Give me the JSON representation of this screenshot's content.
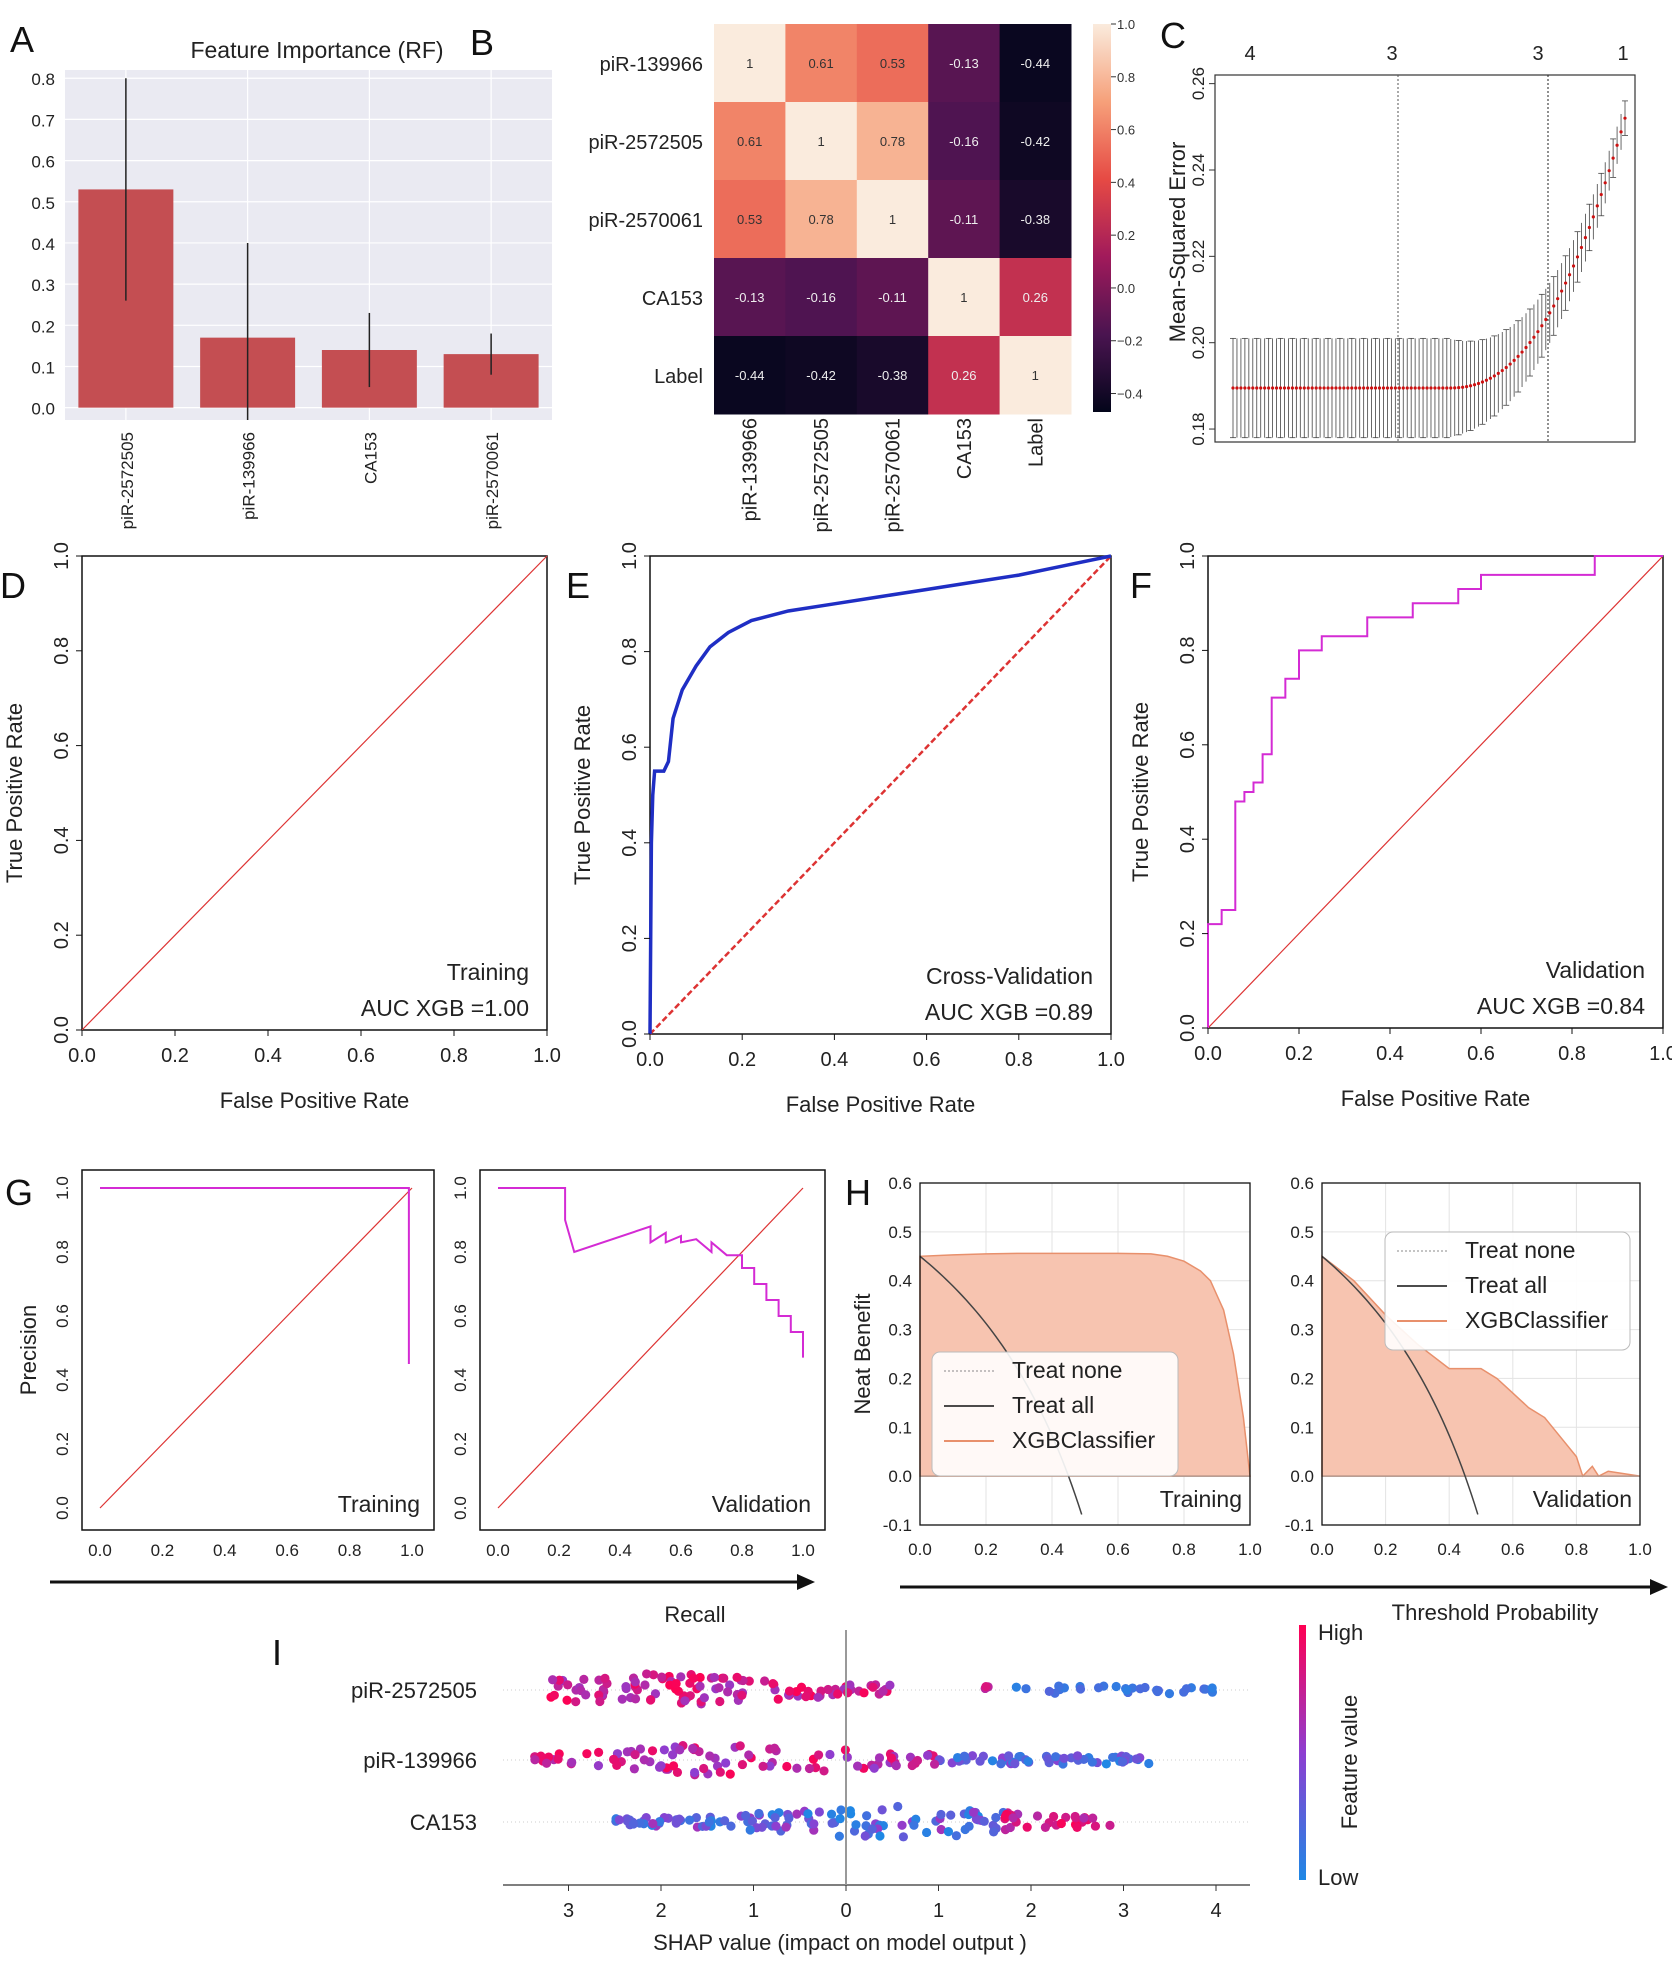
{
  "panel_labels": [
    "A",
    "B",
    "C",
    "D",
    "E",
    "F",
    "G",
    "H",
    "I"
  ],
  "colors": {
    "bar": "#c44e52",
    "diag": "#dd3333",
    "cv_curve": "#1f2ec4",
    "roc_magenta": "#d42bd4",
    "dca_fill": "#f7c4b0",
    "dca_line": "#e8906c",
    "shap_low": "#1e88e5",
    "shap_high": "#ff0052"
  },
  "chart_data": [
    {
      "id": "A",
      "type": "bar",
      "title": "Feature Importance (RF)",
      "categories": [
        "piR-2572505",
        "piR-139966",
        "CA153",
        "piR-2570061"
      ],
      "values": [
        0.53,
        0.17,
        0.14,
        0.13
      ],
      "errors": [
        0.27,
        0.23,
        0.09,
        0.05
      ],
      "ylim": [
        -0.03,
        0.82
      ],
      "yticks": [
        "0.0",
        "0.1",
        "0.2",
        "0.3",
        "0.4",
        "0.5",
        "0.6",
        "0.7",
        "0.8"
      ]
    },
    {
      "id": "B",
      "type": "heatmap",
      "labels": [
        "piR-139966",
        "piR-2572505",
        "piR-2570061",
        "CA153",
        "Label"
      ],
      "matrix": [
        [
          1,
          0.61,
          0.53,
          -0.13,
          -0.44
        ],
        [
          0.61,
          1,
          0.78,
          -0.16,
          -0.42
        ],
        [
          0.53,
          0.78,
          1,
          -0.11,
          -0.38
        ],
        [
          -0.13,
          -0.16,
          -0.11,
          1,
          0.26
        ],
        [
          -0.44,
          -0.42,
          -0.38,
          0.26,
          1
        ]
      ],
      "cells": [
        [
          "1",
          "0.61",
          "0.53",
          "-0.13",
          "-0.44"
        ],
        [
          "0.61",
          "1",
          "0.78",
          "-0.16",
          "-0.42"
        ],
        [
          "0.53",
          "0.78",
          "1",
          "-0.11",
          "-0.38"
        ],
        [
          "-0.13",
          "-0.16",
          "-0.11",
          "1",
          "0.26"
        ],
        [
          "-0.44",
          "-0.42",
          "-0.38",
          "0.26",
          "1"
        ]
      ],
      "colorbar_ticks": [
        "1.0",
        "0.8",
        "0.6",
        "0.4",
        "0.2",
        "0.0",
        "−0.2",
        "−0.4"
      ],
      "colorbar_values": [
        1.0,
        0.8,
        0.6,
        0.4,
        0.2,
        0.0,
        -0.2,
        -0.4
      ],
      "range": [
        -0.47,
        1.0
      ]
    },
    {
      "id": "C",
      "type": "line",
      "ylabel": "Mean-Squared Error",
      "top_ticks": [
        "4",
        "3",
        "3",
        "1"
      ],
      "yticks": [
        "0.18",
        "0.20",
        "0.22",
        "0.24",
        "0.26"
      ],
      "y_tick_values": [
        0.18,
        0.2,
        0.22,
        0.24,
        0.26
      ],
      "ylim": [
        0.177,
        0.262
      ],
      "baseline_mse": 0.1895,
      "baseline_err": 0.0115,
      "max_mse": 0.252,
      "end_err": 0.004
    },
    {
      "id": "D",
      "type": "line",
      "xlabel": "False Positive Rate",
      "ylabel": "True Positive Rate",
      "ticks": [
        "0.0",
        "0.2",
        "0.4",
        "0.6",
        "0.8",
        "1.0"
      ],
      "curve_x": [
        0,
        1
      ],
      "curve_y": [
        0,
        1
      ],
      "note1": "Training",
      "note2": "AUC XGB =1.00"
    },
    {
      "id": "E",
      "type": "line",
      "xlabel": "False Positive Rate",
      "ylabel": "True Positive Rate",
      "ticks": [
        "0.0",
        "0.2",
        "0.4",
        "0.6",
        "0.8",
        "1.0"
      ],
      "curve_x": [
        0,
        0.003,
        0.006,
        0.01,
        0.012,
        0.03,
        0.04,
        0.05,
        0.07,
        0.1,
        0.13,
        0.17,
        0.22,
        0.3,
        0.4,
        0.5,
        0.6,
        0.7,
        0.8,
        0.9,
        1.0
      ],
      "curve_y": [
        0,
        0.4,
        0.5,
        0.55,
        0.55,
        0.55,
        0.57,
        0.66,
        0.72,
        0.77,
        0.81,
        0.84,
        0.865,
        0.885,
        0.9,
        0.915,
        0.93,
        0.945,
        0.96,
        0.98,
        1.0
      ],
      "note1": "Cross-Validation",
      "note2": "AUC XGB =0.89"
    },
    {
      "id": "F",
      "type": "line",
      "xlabel": "False Positive Rate",
      "ylabel": "True Positive Rate",
      "ticks": [
        "0.0",
        "0.2",
        "0.4",
        "0.6",
        "0.8",
        "1.0"
      ],
      "curve_x": [
        0,
        0,
        0.03,
        0.03,
        0.06,
        0.06,
        0.08,
        0.08,
        0.1,
        0.1,
        0.12,
        0.12,
        0.14,
        0.14,
        0.17,
        0.17,
        0.2,
        0.2,
        0.25,
        0.25,
        0.35,
        0.35,
        0.45,
        0.45,
        0.55,
        0.55,
        0.6,
        0.6,
        0.7,
        0.7,
        0.7,
        0.85,
        0.85,
        1.0
      ],
      "curve_y": [
        0,
        0.22,
        0.22,
        0.25,
        0.25,
        0.48,
        0.48,
        0.5,
        0.5,
        0.52,
        0.52,
        0.58,
        0.58,
        0.7,
        0.7,
        0.74,
        0.74,
        0.8,
        0.8,
        0.83,
        0.83,
        0.87,
        0.87,
        0.9,
        0.9,
        0.93,
        0.93,
        0.96,
        0.96,
        0.96,
        0.96,
        0.96,
        1.0,
        1.0
      ],
      "note1": "Validation",
      "note2": "AUC XGB =0.84"
    },
    {
      "id": "G1",
      "type": "line",
      "ylabel": "Precision",
      "xticks": [
        "0.0",
        "0.2",
        "0.4",
        "0.6",
        "0.8",
        "1.0"
      ],
      "yticks": [
        "0.0",
        "0.2",
        "0.4",
        "0.6",
        "0.8",
        "1.0"
      ],
      "curve_x": [
        0,
        0.99,
        0.99
      ],
      "curve_y": [
        1.0,
        1.0,
        0.45
      ],
      "note": "Training"
    },
    {
      "id": "G2",
      "type": "line",
      "xticks": [
        "0.0",
        "0.2",
        "0.4",
        "0.6",
        "0.8",
        "1.0"
      ],
      "yticks": [
        "0.0",
        "0.2",
        "0.4",
        "0.6",
        "0.8",
        "1.0"
      ],
      "curve_x": [
        0,
        0.22,
        0.22,
        0.25,
        0.5,
        0.5,
        0.55,
        0.55,
        0.6,
        0.6,
        0.65,
        0.7,
        0.7,
        0.75,
        0.8,
        0.8,
        0.84,
        0.84,
        0.88,
        0.88,
        0.92,
        0.92,
        0.96,
        0.96,
        1.0,
        1.0
      ],
      "curve_y": [
        1.0,
        1.0,
        0.9,
        0.8,
        0.88,
        0.83,
        0.86,
        0.83,
        0.85,
        0.83,
        0.84,
        0.8,
        0.83,
        0.79,
        0.79,
        0.75,
        0.75,
        0.7,
        0.7,
        0.65,
        0.65,
        0.6,
        0.6,
        0.55,
        0.55,
        0.47
      ],
      "note": "Validation",
      "xlabel": "Recall"
    },
    {
      "id": "H1",
      "type": "area",
      "ylabel": "Neat Benefit",
      "xticks": [
        "0.0",
        "0.2",
        "0.4",
        "0.6",
        "0.8",
        "1.0"
      ],
      "yticks": [
        "0.6",
        "0.5",
        "0.4",
        "0.3",
        "0.2",
        "0.1",
        "0.0",
        "-0.1"
      ],
      "prevalence": 0.45,
      "model_x": [
        0,
        0.1,
        0.2,
        0.3,
        0.4,
        0.5,
        0.6,
        0.7,
        0.75,
        0.8,
        0.85,
        0.88,
        0.9,
        0.92,
        0.95,
        0.98,
        1.0
      ],
      "model_y": [
        0.45,
        0.453,
        0.455,
        0.456,
        0.456,
        0.456,
        0.456,
        0.455,
        0.45,
        0.44,
        0.42,
        0.4,
        0.37,
        0.34,
        0.25,
        0.12,
        0.0
      ],
      "legend": [
        "Treat none",
        "Treat all",
        "XGBClassifier"
      ],
      "note": "Training"
    },
    {
      "id": "H2",
      "type": "area",
      "xticks": [
        "0.0",
        "0.2",
        "0.4",
        "0.6",
        "0.8",
        "1.0"
      ],
      "yticks": [
        "0.6",
        "0.5",
        "0.4",
        "0.3",
        "0.2",
        "0.1",
        "0.0",
        "-0.1"
      ],
      "prevalence": 0.45,
      "model_x": [
        0,
        0.1,
        0.2,
        0.3,
        0.4,
        0.5,
        0.55,
        0.6,
        0.65,
        0.7,
        0.75,
        0.8,
        0.82,
        0.85,
        0.87,
        0.9,
        1.0
      ],
      "model_y": [
        0.45,
        0.4,
        0.33,
        0.27,
        0.22,
        0.22,
        0.2,
        0.17,
        0.14,
        0.12,
        0.08,
        0.04,
        0.0,
        0.02,
        0.0,
        0.01,
        0.0
      ],
      "legend": [
        "Treat none",
        "Treat all",
        "XGBClassifier"
      ],
      "note": "Validation",
      "xlabel": "Threshold Probability"
    },
    {
      "id": "I",
      "type": "scatter",
      "features": [
        "piR-2572505",
        "piR-139966",
        "CA153"
      ],
      "xticks": [
        "3",
        "2",
        "1",
        "0",
        "1",
        "2",
        "3",
        "4"
      ],
      "xlabel": "SHAP value (impact on model output )",
      "colorbar_high": "High",
      "colorbar_low": "Low",
      "colorbar_title": "Feature value",
      "ranges": [
        [
          -3.2,
          4.0
        ],
        [
          -3.4,
          3.4
        ],
        [
          -2.5,
          2.9
        ]
      ]
    }
  ]
}
